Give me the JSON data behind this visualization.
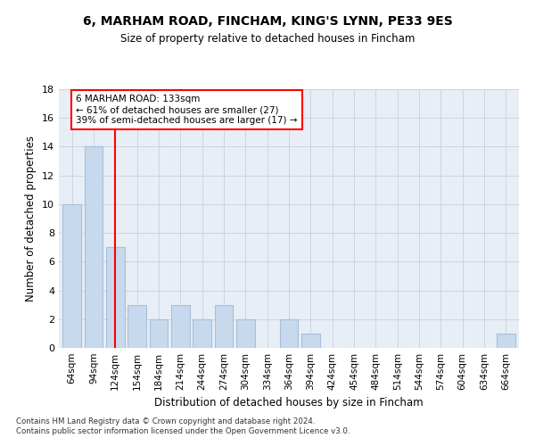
{
  "title1": "6, MARHAM ROAD, FINCHAM, KING'S LYNN, PE33 9ES",
  "title2": "Size of property relative to detached houses in Fincham",
  "xlabel": "Distribution of detached houses by size in Fincham",
  "ylabel": "Number of detached properties",
  "bar_color": "#c6d9ed",
  "bar_edge_color": "#aabfd8",
  "background_color": "#e8eef6",
  "grid_color": "#ccd5e0",
  "categories": [
    "64sqm",
    "94sqm",
    "124sqm",
    "154sqm",
    "184sqm",
    "214sqm",
    "244sqm",
    "274sqm",
    "304sqm",
    "334sqm",
    "364sqm",
    "394sqm",
    "424sqm",
    "454sqm",
    "484sqm",
    "514sqm",
    "544sqm",
    "574sqm",
    "604sqm",
    "634sqm",
    "664sqm"
  ],
  "values": [
    10,
    14,
    7,
    3,
    2,
    3,
    2,
    3,
    2,
    0,
    2,
    1,
    0,
    0,
    0,
    0,
    0,
    0,
    0,
    0,
    1
  ],
  "red_line_x": 2,
  "annotation_title": "6 MARHAM ROAD: 133sqm",
  "annotation_line1": "← 61% of detached houses are smaller (27)",
  "annotation_line2": "39% of semi-detached houses are larger (17) →",
  "ylim": [
    0,
    18
  ],
  "yticks": [
    0,
    2,
    4,
    6,
    8,
    10,
    12,
    14,
    16,
    18
  ],
  "footer1": "Contains HM Land Registry data © Crown copyright and database right 2024.",
  "footer2": "Contains public sector information licensed under the Open Government Licence v3.0."
}
